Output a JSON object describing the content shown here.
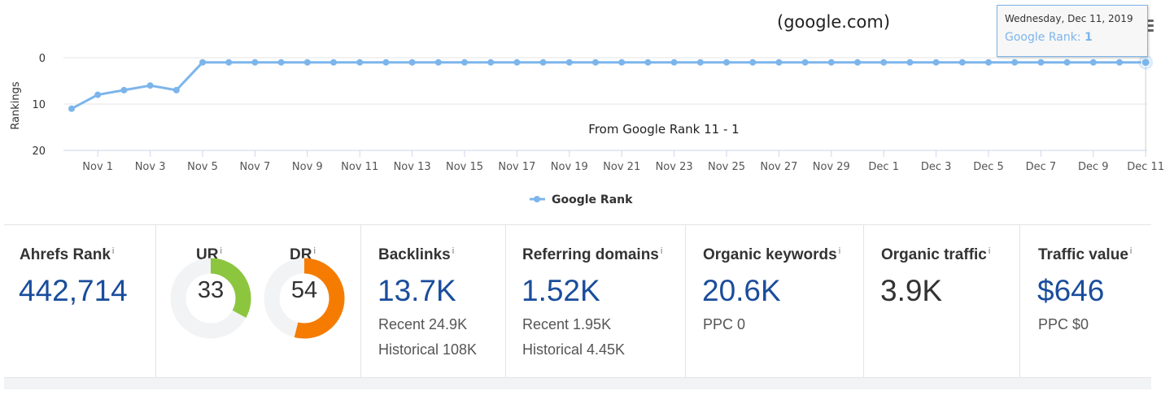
{
  "chart_data": {
    "type": "line",
    "title": "(google.com)",
    "ylabel": "Rankings",
    "ylim": [
      0,
      20
    ],
    "yticks": [
      "0",
      "10",
      "20"
    ],
    "reversed_y": true,
    "grid": true,
    "legend_position": "bottom-center",
    "x_tick_labels": [
      "Nov 1",
      "Nov 3",
      "Nov 5",
      "Nov 7",
      "Nov 9",
      "Nov 11",
      "Nov 13",
      "Nov 15",
      "Nov 17",
      "Nov 19",
      "Nov 21",
      "Nov 23",
      "Nov 25",
      "Nov 27",
      "Nov 29",
      "Dec 1",
      "Dec 3",
      "Dec 5",
      "Dec 7",
      "Dec 9",
      "Dec 11"
    ],
    "x": [
      "Oct 31",
      "Nov 1",
      "Nov 2",
      "Nov 3",
      "Nov 4",
      "Nov 5",
      "Nov 6",
      "Nov 7",
      "Nov 8",
      "Nov 9",
      "Nov 10",
      "Nov 11",
      "Nov 12",
      "Nov 13",
      "Nov 14",
      "Nov 15",
      "Nov 16",
      "Nov 17",
      "Nov 18",
      "Nov 19",
      "Nov 20",
      "Nov 21",
      "Nov 22",
      "Nov 23",
      "Nov 24",
      "Nov 25",
      "Nov 26",
      "Nov 27",
      "Nov 28",
      "Nov 29",
      "Nov 30",
      "Dec 1",
      "Dec 2",
      "Dec 3",
      "Dec 4",
      "Dec 5",
      "Dec 6",
      "Dec 7",
      "Dec 8",
      "Dec 9",
      "Dec 10",
      "Dec 11"
    ],
    "series": [
      {
        "name": "Google Rank",
        "color": "#7cb5ec",
        "values": [
          11,
          8,
          7,
          6,
          7,
          1,
          1,
          1,
          1,
          1,
          1,
          1,
          1,
          1,
          1,
          1,
          1,
          1,
          1,
          1,
          1,
          1,
          1,
          1,
          1,
          1,
          1,
          1,
          1,
          1,
          1,
          1,
          1,
          1,
          1,
          1,
          1,
          1,
          1,
          1,
          1,
          1
        ]
      }
    ],
    "annotation": "From Google Rank 11 - 1",
    "tooltip": {
      "date": "Wednesday, Dec 11, 2019",
      "series_label": "Google Rank:",
      "value": "1"
    },
    "highlight_index": 41
  },
  "header": {
    "menu_icon": "hamburger-icon"
  },
  "metrics": {
    "ahrefs_rank": {
      "label": "Ahrefs Rank",
      "info": "i",
      "value": "442,714"
    },
    "ur": {
      "label": "UR",
      "info": "i",
      "value": "33",
      "fraction": 0.33,
      "color": "#8cc63f"
    },
    "dr": {
      "label": "DR",
      "info": "i",
      "value": "54",
      "fraction": 0.54,
      "color": "#f57c00"
    },
    "backlinks": {
      "label": "Backlinks",
      "info": "i",
      "value": "13.7K",
      "recent": "Recent 24.9K",
      "historical": "Historical 108K"
    },
    "referring_domains": {
      "label": "Referring domains",
      "info": "i",
      "value": "1.52K",
      "recent": "Recent 1.95K",
      "historical": "Historical 4.45K"
    },
    "organic_keywords": {
      "label": "Organic keywords",
      "info": "i",
      "value": "20.6K",
      "ppc": "PPC 0"
    },
    "organic_traffic": {
      "label": "Organic traffic",
      "info": "i",
      "value": "3.9K"
    },
    "traffic_value": {
      "label": "Traffic value",
      "info": "i",
      "value": "$646",
      "ppc": "PPC $0"
    }
  },
  "colors": {
    "accent_blue": "#1a4d9c",
    "line_blue": "#7cb5ec",
    "grid": "#e6e6e6"
  }
}
